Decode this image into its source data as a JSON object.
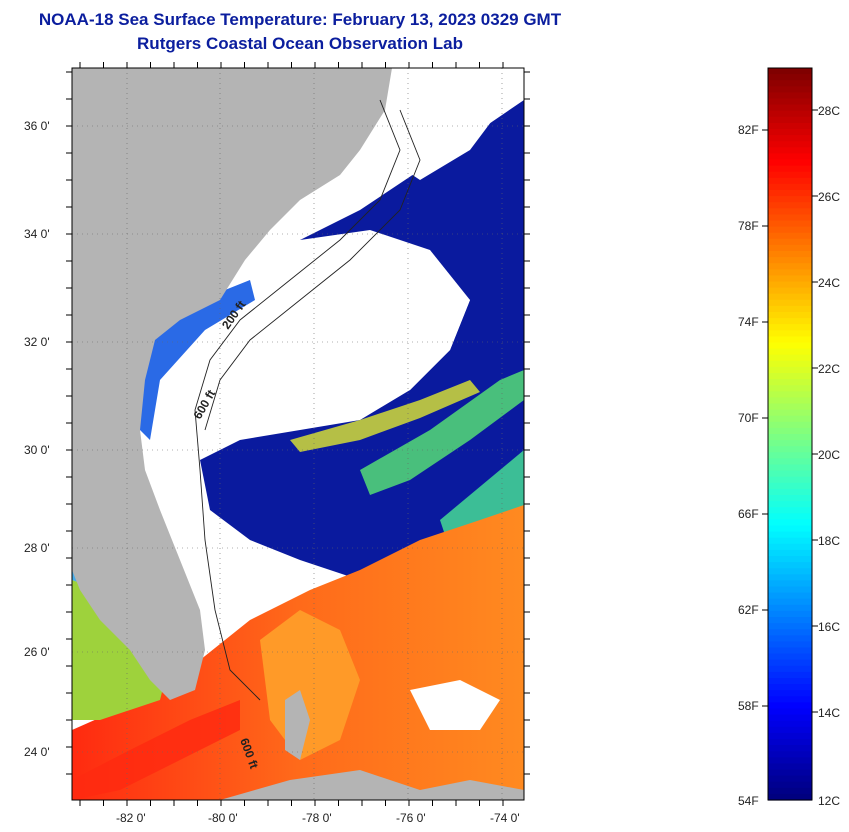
{
  "header": {
    "title_line1": "NOAA-18 Sea Surface Temperature:  February 13, 2023 0329 GMT",
    "title_line2": "Rutgers Coastal Ocean Observation Lab"
  },
  "map": {
    "lon_labels": [
      "-82 0'",
      "-80 0'",
      "-78 0'",
      "-76 0'",
      "-74 0'"
    ],
    "lat_labels": [
      "36 0'",
      "34 0'",
      "32 0'",
      "30 0'",
      "28 0'",
      "26 0'",
      "24 0'"
    ],
    "contour_labels": [
      "200 ft",
      "600 ft",
      "600 ft"
    ],
    "colors": {
      "land": "#b4b4b4",
      "cloud": "#ffffff",
      "cold": "#0a1a9e",
      "warm": "#ff5a14"
    }
  },
  "colorbar": {
    "fahrenheit_labels": [
      "82F",
      "78F",
      "74F",
      "70F",
      "66F",
      "62F",
      "58F",
      "54F"
    ],
    "celsius_labels": [
      "28C",
      "26C",
      "24C",
      "22C",
      "20C",
      "18C",
      "16C",
      "14C",
      "12C"
    ],
    "range_c": [
      12,
      29
    ]
  }
}
